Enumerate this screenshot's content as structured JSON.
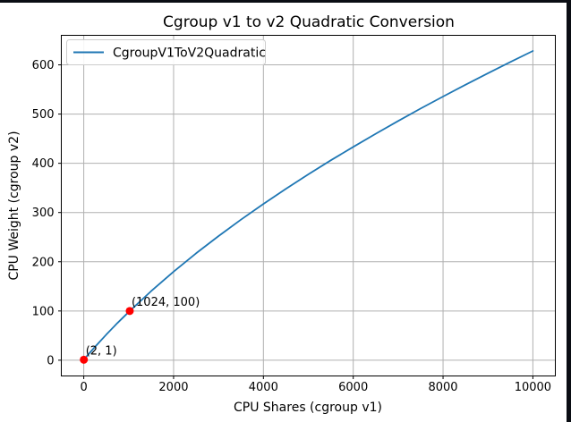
{
  "frame": {
    "border_color": "#0a0d13",
    "background_color": "#ffffff"
  },
  "chart_data": {
    "type": "line",
    "title": "Cgroup v1 to v2 Quadratic Conversion",
    "xlabel": "CPU Shares (cgroup v1)",
    "ylabel": "CPU Weight (cgroup v2)",
    "grid": true,
    "grid_color": "#b0b0b0",
    "spine_color": "#000000",
    "xlim": [
      -500,
      10500
    ],
    "ylim": [
      -32,
      660
    ],
    "xticks": [
      0,
      2000,
      4000,
      6000,
      8000,
      10000
    ],
    "yticks": [
      0,
      100,
      200,
      300,
      400,
      500,
      600
    ],
    "legend": {
      "position": "upper-left",
      "entries": [
        {
          "label": "CgroupV1ToV2Quadratic",
          "color": "#1f77b4"
        }
      ]
    },
    "series": [
      {
        "name": "CgroupV1ToV2Quadratic",
        "color": "#1f77b4",
        "points": [
          [
            2,
            1
          ],
          [
            100,
            11.6
          ],
          [
            250,
            27.1
          ],
          [
            500,
            51.9
          ],
          [
            750,
            75.5
          ],
          [
            1024,
            100
          ],
          [
            1500,
            140.4
          ],
          [
            2000,
            179.9
          ],
          [
            2500,
            217.0
          ],
          [
            3000,
            252.1
          ],
          [
            3500,
            285.5
          ],
          [
            4000,
            317.4
          ],
          [
            4500,
            348.0
          ],
          [
            5000,
            377.5
          ],
          [
            5500,
            406.0
          ],
          [
            6000,
            433.3
          ],
          [
            6500,
            460.1
          ],
          [
            7000,
            486.0
          ],
          [
            7500,
            511.2
          ],
          [
            8000,
            535.5
          ],
          [
            8500,
            559.6
          ],
          [
            9000,
            582.9
          ],
          [
            9500,
            605.8
          ],
          [
            10000,
            628.3
          ]
        ]
      }
    ],
    "markers": [
      {
        "x": 2,
        "y": 1,
        "color": "#ff0000",
        "annotation": "(2, 1)"
      },
      {
        "x": 1024,
        "y": 100,
        "color": "#ff0000",
        "annotation": "(1024, 100)"
      }
    ]
  }
}
